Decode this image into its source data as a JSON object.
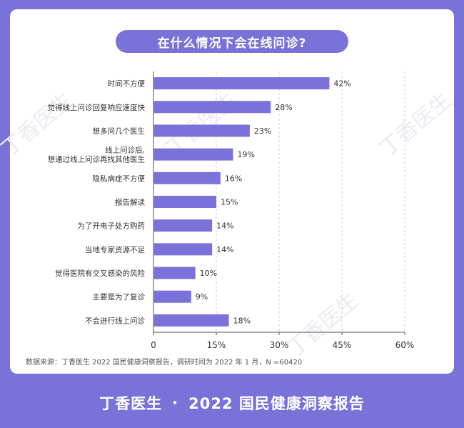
{
  "title": "在什么情况下会在线问诊?",
  "footer": {
    "brand": "丁香医生",
    "separator": "·",
    "report": "2022 国民健康洞察报告"
  },
  "source_note": "数据来源：丁香医生 2022 国民健康洞察报告，调研时间为 2022 年 1 月，N =60420",
  "watermark": "丁香医生",
  "colors": {
    "bar": "#7B72D9",
    "background": "#7B72D9",
    "card": "#FFFFFF"
  },
  "chart_data": {
    "type": "bar",
    "orientation": "horizontal",
    "categories": [
      "时间不方便",
      "觉得线上问诊回复响应速度快",
      "想多问几个医生",
      "线上问诊后,\n想通过线上问诊再找其他医生",
      "隐私病症不方便",
      "报告解读",
      "为了开电子处方购药",
      "当地专家资源不足",
      "觉得医院有交叉感染的风险",
      "主要是为了复诊",
      "不会进行线上问诊"
    ],
    "values": [
      42,
      28,
      23,
      19,
      16,
      15,
      14,
      14,
      10,
      9,
      18
    ],
    "value_labels": [
      "42%",
      "28%",
      "23%",
      "19%",
      "16%",
      "15%",
      "14%",
      "14%",
      "10%",
      "9%",
      "18%"
    ],
    "xlim": [
      0,
      60
    ],
    "ticks": [
      0,
      15,
      30,
      45,
      60
    ],
    "tick_labels": [
      "0",
      "15%",
      "30%",
      "45%",
      "60%"
    ],
    "grid": "vertical dashed",
    "title": "在什么情况下会在线问诊?"
  }
}
